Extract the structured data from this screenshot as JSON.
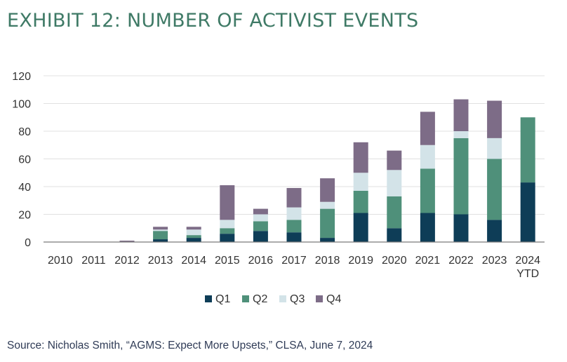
{
  "title": "EXHIBIT 12: NUMBER OF ACTIVIST EVENTS",
  "source": "Source: Nicholas Smith, “AGMS: Expect More Upsets,” CLSA, June 7, 2024",
  "colors": {
    "title": "#3f7a66",
    "Q1": "#0e3d57",
    "Q2": "#4f907a",
    "Q3": "#d3e3e8",
    "Q4": "#7d6c87",
    "grid": "#e1e1e1",
    "axis": "#7a7a7a",
    "text": "#333333"
  },
  "chart_data": {
    "type": "bar",
    "stacked": true,
    "categories": [
      "2010",
      "2011",
      "2012",
      "2013",
      "2014",
      "2015",
      "2016",
      "2017",
      "2018",
      "2019",
      "2020",
      "2021",
      "2022",
      "2023",
      "2024\nYTD"
    ],
    "series": [
      {
        "name": "Q1",
        "values": [
          0,
          0,
          0,
          2,
          3,
          6,
          8,
          7,
          3,
          21,
          10,
          21,
          20,
          16,
          43
        ]
      },
      {
        "name": "Q2",
        "values": [
          0,
          0,
          0,
          6,
          2,
          4,
          7,
          9,
          21,
          16,
          23,
          32,
          55,
          44,
          47
        ]
      },
      {
        "name": "Q3",
        "values": [
          0,
          0,
          0,
          1,
          4,
          6,
          5,
          9,
          5,
          13,
          19,
          17,
          5,
          15,
          0
        ]
      },
      {
        "name": "Q4",
        "values": [
          0,
          0,
          1,
          2,
          2,
          25,
          4,
          14,
          17,
          22,
          14,
          24,
          23,
          27,
          0
        ]
      }
    ],
    "ylim": [
      0,
      120
    ],
    "yticks": [
      0,
      20,
      40,
      60,
      80,
      100,
      120
    ],
    "grid": true,
    "legend": "bottom-center",
    "xlabel": "",
    "ylabel": ""
  }
}
